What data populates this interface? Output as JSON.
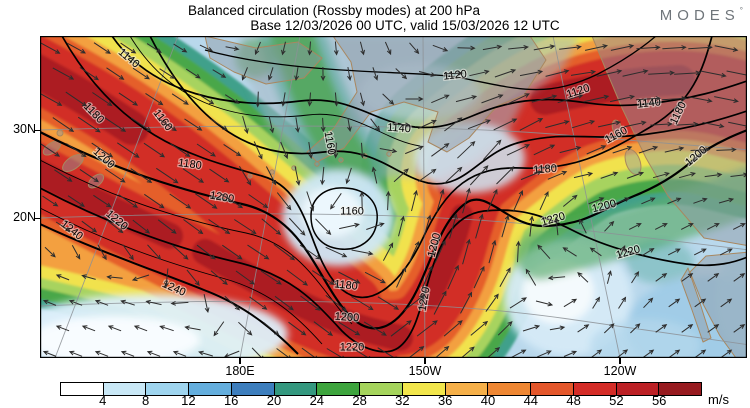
{
  "header": {
    "title": "Balanced circulation (Rossby modes) at 200 hPa",
    "subtitle": "Base 12/03/2026 00 UTC, valid 15/03/2026 12 UTC",
    "logo": "MODES",
    "logo_mark": "°"
  },
  "chart_data": {
    "type": "heatmap",
    "title": "Balanced circulation (Rossby modes) at 200 hPa",
    "subtitle": "Base 12/03/2026 00 UTC, valid 15/03/2026 12 UTC",
    "field_description": "Wind speed shading with height contours and wind vectors over the North Pacific",
    "x_ticks": [
      "180E",
      "150W",
      "120W"
    ],
    "y_ticks": [
      "30N",
      "20N"
    ],
    "contour_levels": [
      "1120",
      "1140",
      "1160",
      "1180",
      "1200",
      "1220",
      "1240"
    ],
    "colorbar": {
      "units": "m/s",
      "tick_labels": [
        "4",
        "8",
        "12",
        "16",
        "20",
        "24",
        "28",
        "32",
        "36",
        "40",
        "44",
        "48",
        "52",
        "56"
      ],
      "colors": [
        "#ffffff",
        "#c9e8f6",
        "#9fd5ef",
        "#64aedd",
        "#3d7ebd",
        "#34987f",
        "#3da43d",
        "#a5d45c",
        "#f2e64c",
        "#f6b049",
        "#ef8733",
        "#e4572b",
        "#d42c27",
        "#bc2025",
        "#971a1f"
      ]
    },
    "layers": [
      "wind speed shading (m/s)",
      "streamfunction height contours",
      "wind vector arrows"
    ],
    "legend_position": "bottom"
  }
}
